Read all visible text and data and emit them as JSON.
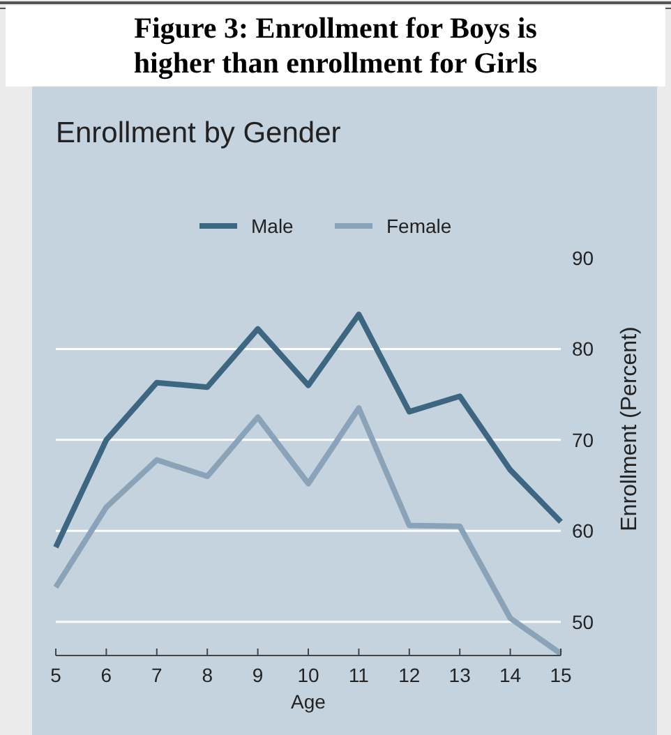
{
  "chart_data": {
    "type": "line",
    "title": "Figure 3:  Enrollment for Boys is higher than enrollment for Girls",
    "subtitle": "Enrollment by Gender",
    "xlabel": "Age",
    "ylabel": "Enrollment (Percent)",
    "x": [
      5,
      6,
      7,
      8,
      9,
      10,
      11,
      12,
      13,
      14,
      15
    ],
    "series": [
      {
        "name": "Male",
        "color": "#3d6680",
        "values": [
          58.2,
          70,
          76.3,
          75.8,
          82.2,
          76.0,
          83.8,
          73.1,
          74.8,
          66.7,
          61.0
        ]
      },
      {
        "name": "Female",
        "color": "#8aa3b8",
        "values": [
          53.8,
          62.6,
          67.8,
          66.0,
          72.5,
          65.2,
          73.5,
          60.6,
          60.5,
          50.4,
          46.5
        ]
      }
    ],
    "xlim": [
      5,
      15
    ],
    "xticks": [
      5,
      6,
      7,
      8,
      9,
      10,
      11,
      12,
      13,
      14,
      15
    ],
    "ylim": [
      46.3,
      90
    ],
    "yticks": [
      50,
      60,
      70,
      80,
      90
    ],
    "grid": "y",
    "legend": "top",
    "marker": "none",
    "line_style": "solid"
  }
}
